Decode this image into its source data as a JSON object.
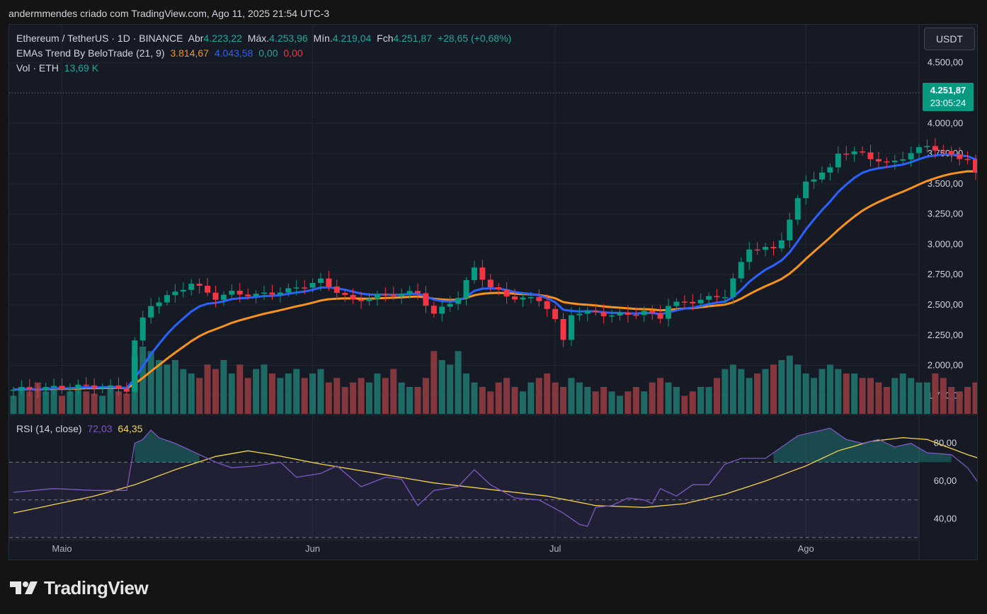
{
  "header": {
    "author_line": "andermmendes criado com TradingView.com, Ago 11, 2025 21:54 UTC-3"
  },
  "legend": {
    "symbol": "Ethereum / TetherUS · 1D · BINANCE",
    "open_label": "Abr",
    "open": "4.223,22",
    "high_label": "Máx.",
    "high": "4.253,96",
    "low_label": "Mín.",
    "low": "4.219,04",
    "close_label": "Fch",
    "close": "4.251,87",
    "change": "+28,65 (+0,68%)",
    "ema_name": "EMAs Trend By BeloTrade (21, 9)",
    "ema_slow": "3.814,67",
    "ema_fast": "4.043,58",
    "ema_v3": "0,00",
    "ema_v4": "0,00",
    "vol_name": "Vol · ETH",
    "vol_value": "13,69 K",
    "rsi_name": "RSI (14, close)",
    "rsi_value": "72,03",
    "rsi_ma": "64,35"
  },
  "currency_button": "USDT",
  "price_tag": {
    "price": "4.251,87",
    "countdown": "23:05:24"
  },
  "logo_text": "TradingView",
  "colors": {
    "up": "#089981",
    "down": "#f23645",
    "ema_fast": "#2962ff",
    "ema_slow": "#f7931a",
    "rsi": "#7e57c2",
    "rsi_ma": "#f5d447",
    "bg": "#161a25",
    "grid": "#232632"
  },
  "chart_data": [
    {
      "type": "candlestick",
      "title": "Ethereum / TetherUS · 1D · BINANCE",
      "x_ticks": [
        "Maio",
        "Jun",
        "Jul",
        "Ago"
      ],
      "y_ticks": [
        "1.750,00",
        "2.000,00",
        "2.250,00",
        "2.500,00",
        "2.750,00",
        "3.000,00",
        "3.250,00",
        "3.500,00",
        "3.750,00",
        "4.000,00",
        "4.250,00",
        "4.500,00"
      ],
      "ylim": [
        1600,
        4580
      ],
      "anchor_closes": [
        [
          0,
          1800
        ],
        [
          6,
          1820
        ],
        [
          10,
          1830
        ],
        [
          13,
          1810
        ],
        [
          14,
          1800
        ],
        [
          15,
          2200
        ],
        [
          16,
          2380
        ],
        [
          17,
          2500
        ],
        [
          20,
          2600
        ],
        [
          22,
          2680
        ],
        [
          25,
          2560
        ],
        [
          27,
          2600
        ],
        [
          30,
          2580
        ],
        [
          34,
          2620
        ],
        [
          38,
          2700
        ],
        [
          42,
          2530
        ],
        [
          44,
          2560
        ],
        [
          47,
          2590
        ],
        [
          50,
          2600
        ],
        [
          52,
          2420
        ],
        [
          55,
          2570
        ],
        [
          56,
          2690
        ],
        [
          57,
          2800
        ],
        [
          59,
          2650
        ],
        [
          61,
          2570
        ],
        [
          65,
          2540
        ],
        [
          66,
          2480
        ],
        [
          67,
          2370
        ],
        [
          68,
          2200
        ],
        [
          69,
          2430
        ],
        [
          72,
          2440
        ],
        [
          74,
          2410
        ],
        [
          78,
          2440
        ],
        [
          80,
          2400
        ],
        [
          81,
          2500
        ],
        [
          84,
          2530
        ],
        [
          88,
          2580
        ],
        [
          91,
          2970
        ],
        [
          94,
          2960
        ],
        [
          95,
          3050
        ],
        [
          98,
          3520
        ],
        [
          101,
          3620
        ],
        [
          102,
          3760
        ],
        [
          105,
          3750
        ],
        [
          108,
          3660
        ],
        [
          111,
          3750
        ],
        [
          113,
          3820
        ],
        [
          116,
          3730
        ],
        [
          118,
          3710
        ],
        [
          119,
          3580
        ],
        [
          120,
          3510
        ],
        [
          121,
          3410
        ],
        [
          122,
          3460
        ],
        [
          123,
          3720
        ],
        [
          125,
          3590
        ],
        [
          126,
          3670
        ],
        [
          127,
          3880
        ],
        [
          128,
          4050
        ],
        [
          130,
          4280
        ],
        [
          131,
          4250
        ],
        [
          132,
          4252
        ]
      ],
      "last_price": "4.251,87"
    },
    {
      "type": "bar",
      "title": "Vol · ETH",
      "volumes": [
        0.4,
        0.6,
        0.5,
        0.7,
        0.5,
        0.6,
        0.4,
        0.5,
        0.6,
        0.5,
        0.45,
        0.4,
        0.6,
        0.5,
        0.45,
        1.3,
        1.5,
        1.4,
        1.2,
        1.1,
        1.2,
        1.0,
        0.9,
        0.8,
        1.1,
        1.0,
        1.2,
        0.9,
        1.1,
        0.8,
        1.0,
        1.1,
        0.9,
        0.8,
        0.9,
        1.0,
        0.8,
        0.9,
        1.0,
        0.7,
        0.8,
        0.6,
        0.7,
        0.8,
        0.7,
        0.9,
        0.8,
        1.0,
        0.7,
        0.6,
        0.6,
        0.8,
        1.4,
        1.2,
        1.1,
        1.4,
        0.9,
        0.7,
        0.6,
        0.5,
        0.7,
        0.8,
        0.6,
        0.5,
        0.7,
        0.8,
        0.9,
        0.7,
        0.6,
        0.8,
        0.7,
        0.6,
        0.5,
        0.6,
        0.5,
        0.4,
        0.5,
        0.6,
        0.5,
        0.7,
        0.8,
        0.7,
        0.6,
        0.4,
        0.5,
        0.6,
        0.6,
        0.8,
        1.0,
        1.1,
        1.0,
        0.8,
        0.9,
        1.0,
        1.1,
        1.2,
        1.3,
        1.1,
        0.9,
        0.8,
        1.0,
        1.1,
        1.0,
        0.9,
        0.9,
        0.8,
        0.8,
        0.7,
        0.6,
        0.8,
        0.9,
        0.8,
        0.7,
        0.7,
        0.9,
        0.8,
        0.6,
        0.5,
        0.6,
        0.7,
        0.6,
        0.5,
        0.7,
        0.8,
        0.9,
        0.8,
        0.6,
        0.9,
        0.8,
        0.6,
        0.4,
        0.05
      ]
    },
    {
      "type": "line",
      "title": "RSI (14, close)",
      "y_ticks": [
        "40,00",
        "60,00",
        "80,00"
      ],
      "ylim": [
        30,
        90
      ],
      "bands": [
        30,
        50,
        70
      ],
      "rsi_anchors": [
        [
          0,
          54
        ],
        [
          5,
          56
        ],
        [
          10,
          55
        ],
        [
          14,
          55
        ],
        [
          15,
          80
        ],
        [
          16,
          82
        ],
        [
          17,
          87
        ],
        [
          18,
          83
        ],
        [
          20,
          80
        ],
        [
          22,
          76
        ],
        [
          25,
          70
        ],
        [
          27,
          67
        ],
        [
          30,
          68
        ],
        [
          33,
          70
        ],
        [
          35,
          62
        ],
        [
          38,
          64
        ],
        [
          40,
          68
        ],
        [
          43,
          57
        ],
        [
          46,
          62
        ],
        [
          48,
          61
        ],
        [
          50,
          47
        ],
        [
          52,
          55
        ],
        [
          55,
          57
        ],
        [
          57,
          66
        ],
        [
          59,
          58
        ],
        [
          62,
          51
        ],
        [
          65,
          50
        ],
        [
          68,
          43
        ],
        [
          70,
          37
        ],
        [
          71,
          36
        ],
        [
          72,
          46
        ],
        [
          74,
          47
        ],
        [
          76,
          51
        ],
        [
          78,
          50
        ],
        [
          79,
          48
        ],
        [
          80,
          56
        ],
        [
          82,
          52
        ],
        [
          84,
          58
        ],
        [
          86,
          58
        ],
        [
          88,
          69
        ],
        [
          90,
          72
        ],
        [
          93,
          72
        ],
        [
          95,
          78
        ],
        [
          97,
          84
        ],
        [
          99,
          86
        ],
        [
          101,
          88
        ],
        [
          103,
          82
        ],
        [
          105,
          80
        ],
        [
          107,
          82
        ],
        [
          109,
          78
        ],
        [
          111,
          80
        ],
        [
          113,
          75
        ],
        [
          116,
          74
        ],
        [
          118,
          67
        ],
        [
          120,
          55
        ],
        [
          121,
          51
        ],
        [
          122,
          54
        ],
        [
          123,
          63
        ],
        [
          125,
          58
        ],
        [
          127,
          65
        ],
        [
          129,
          73
        ],
        [
          131,
          72
        ],
        [
          132,
          73
        ]
      ],
      "ma_anchors": [
        [
          0,
          43
        ],
        [
          10,
          52
        ],
        [
          15,
          58
        ],
        [
          20,
          66
        ],
        [
          25,
          73
        ],
        [
          29,
          76
        ],
        [
          32,
          74
        ],
        [
          38,
          69
        ],
        [
          45,
          64
        ],
        [
          52,
          59
        ],
        [
          60,
          55
        ],
        [
          66,
          52
        ],
        [
          72,
          47
        ],
        [
          78,
          46
        ],
        [
          83,
          48
        ],
        [
          88,
          53
        ],
        [
          93,
          60
        ],
        [
          98,
          68
        ],
        [
          102,
          76
        ],
        [
          106,
          81
        ],
        [
          110,
          83
        ],
        [
          113,
          82
        ],
        [
          118,
          74
        ],
        [
          123,
          67
        ],
        [
          128,
          65
        ],
        [
          132,
          64
        ]
      ],
      "rsi_value": "72,03",
      "ma_value": "64,35"
    }
  ]
}
